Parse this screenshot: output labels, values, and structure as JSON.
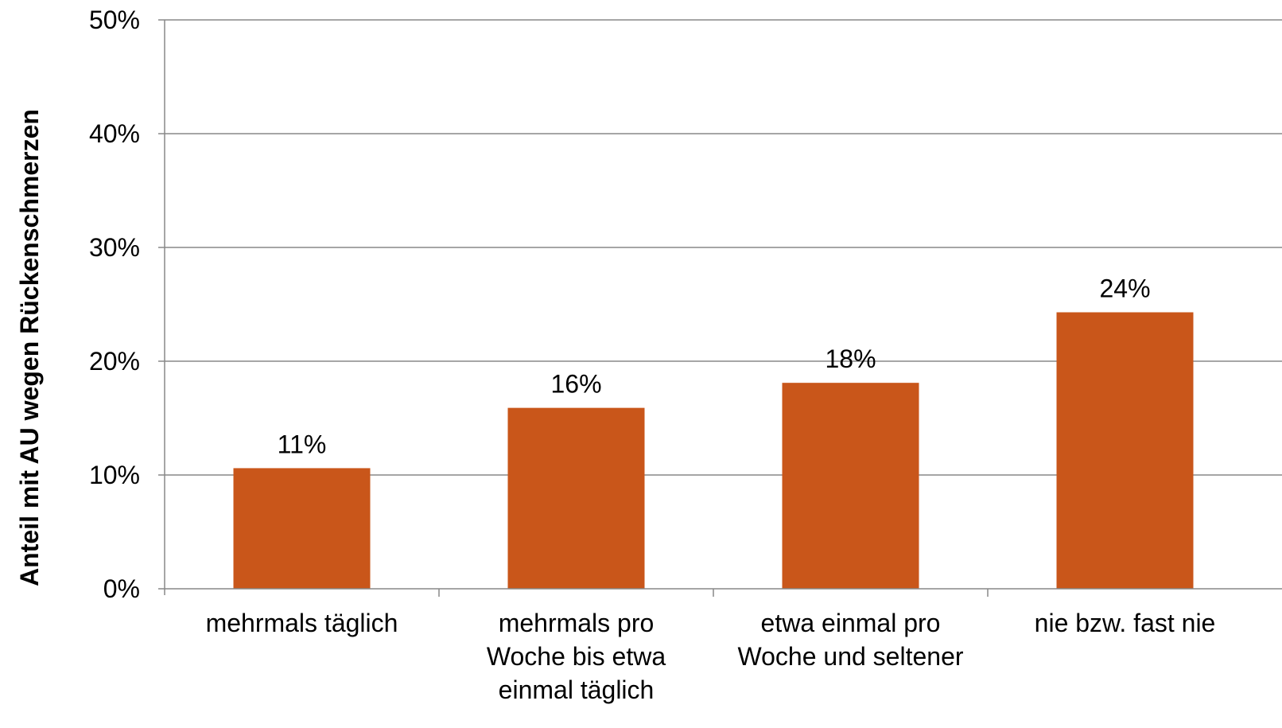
{
  "chart_data": {
    "type": "bar",
    "title": "",
    "xlabel": "",
    "ylabel": "Anteil mit AU wegen Rückenschmerzen",
    "ylim": [
      0,
      50
    ],
    "y_ticks": [
      0,
      10,
      20,
      30,
      40,
      50
    ],
    "y_tick_labels": [
      "0%",
      "10%",
      "20%",
      "30%",
      "40%",
      "50%"
    ],
    "grid": true,
    "legend": "none",
    "categories": [
      [
        "mehrmals täglich"
      ],
      [
        "mehrmals pro",
        "Woche bis etwa",
        "einmal täglich"
      ],
      [
        "etwa einmal pro",
        "Woche und seltener"
      ],
      [
        "nie bzw. fast nie"
      ]
    ],
    "values": [
      10.6,
      15.9,
      18.1,
      24.3
    ],
    "data_labels": [
      "11%",
      "16%",
      "18%",
      "24%"
    ],
    "bar_color": "#c9561a",
    "grid_color": "#888888",
    "axis_color": "#888888"
  }
}
